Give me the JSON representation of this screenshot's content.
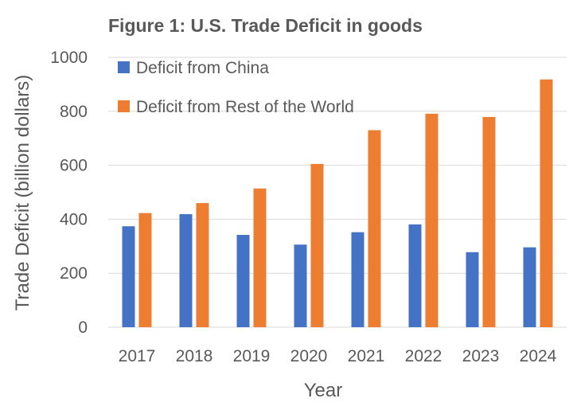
{
  "chart_data": {
    "type": "bar",
    "title": "Figure 1: U.S. Trade Deficit in goods",
    "xlabel": "Year",
    "ylabel": "Trade Deficit (billion dollars)",
    "categories": [
      "2017",
      "2018",
      "2019",
      "2020",
      "2021",
      "2022",
      "2023",
      "2024"
    ],
    "series": [
      {
        "name": "Deficit from China",
        "color": "#4472c4",
        "values": [
          374,
          419,
          342,
          306,
          352,
          381,
          278,
          296
        ]
      },
      {
        "name": "Deficit from Rest of the World",
        "color": "#ed7d31",
        "values": [
          423,
          460,
          514,
          605,
          730,
          791,
          779,
          918
        ]
      }
    ],
    "ylim": [
      0,
      1000
    ],
    "yticks": [
      0,
      200,
      400,
      600,
      800,
      1000
    ],
    "grid": true,
    "legend_placement": "top-left"
  }
}
